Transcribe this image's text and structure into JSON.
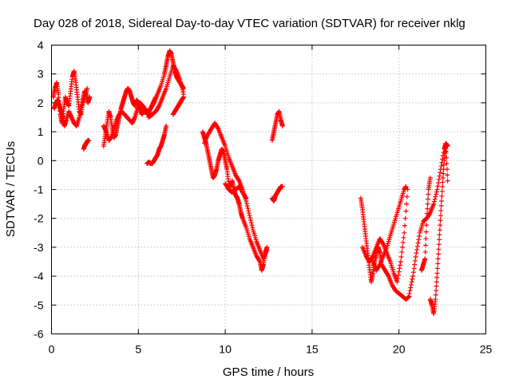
{
  "chart_data": {
    "type": "scatter",
    "title": "Day 028 of 2018, Sidereal Day-to-day VTEC variation (SDTVAR) for receiver nklg",
    "xlabel": "GPS time / hours",
    "ylabel": "SDTVAR / TECUs",
    "xlim": [
      0,
      25
    ],
    "ylim": [
      -6,
      4
    ],
    "xticks": [
      0,
      5,
      10,
      15,
      20,
      25
    ],
    "yticks": [
      -6,
      -5,
      -4,
      -3,
      -2,
      -1,
      0,
      1,
      2,
      3,
      4
    ],
    "grid": true,
    "marker": "+",
    "color": "#ff0000",
    "series": [
      {
        "name": "cluster-0-1.5h",
        "x": [
          0.1,
          0.2,
          0.3,
          0.4,
          0.5,
          0.6,
          0.7,
          0.8,
          0.9,
          1.0,
          1.1,
          1.2,
          1.3,
          1.4,
          1.5,
          1.6,
          1.7,
          1.8,
          1.9,
          2.0,
          2.1,
          2.2
        ],
        "y": [
          2.2,
          2.5,
          2.7,
          2.3,
          1.6,
          1.3,
          1.8,
          2.2,
          2.0,
          1.9,
          2.4,
          2.9,
          3.1,
          2.7,
          2.2,
          1.7,
          1.6,
          2.1,
          2.4,
          2.3,
          2.0,
          2.2
        ]
      },
      {
        "name": "cluster-0-1.5h-b",
        "x": [
          0.15,
          0.25,
          0.35,
          0.45,
          0.55,
          0.65,
          0.75,
          0.85,
          1.0,
          1.15,
          1.3,
          1.45,
          1.6,
          1.75,
          1.9,
          2.05
        ],
        "y": [
          1.8,
          2.0,
          2.1,
          1.9,
          1.7,
          1.5,
          1.2,
          1.4,
          1.7,
          1.5,
          1.3,
          1.2,
          1.5,
          1.9,
          2.2,
          2.5
        ]
      },
      {
        "name": "segment-1.9h",
        "x": [
          1.85,
          1.9,
          1.95,
          2.0,
          2.05,
          2.1,
          2.15
        ],
        "y": [
          0.4,
          0.5,
          0.55,
          0.6,
          0.65,
          0.7,
          0.7
        ]
      },
      {
        "name": "loop-3-5h",
        "x": [
          3.0,
          3.1,
          3.2,
          3.3,
          3.4,
          3.5,
          3.6,
          3.7,
          3.8,
          3.9,
          4.0,
          4.1,
          4.2,
          4.3,
          4.4,
          4.5,
          4.6,
          4.7,
          4.8,
          4.9,
          5.0,
          5.1,
          5.2,
          5.3,
          5.4,
          5.5
        ],
        "y": [
          0.5,
          0.9,
          1.3,
          1.7,
          1.5,
          1.1,
          0.8,
          0.9,
          1.2,
          1.5,
          1.8,
          2.0,
          2.2,
          2.4,
          2.5,
          2.4,
          2.2,
          2.0,
          1.9,
          2.1,
          2.0,
          1.8,
          1.6,
          1.7,
          1.8,
          1.7
        ]
      },
      {
        "name": "loop-3-5h-b",
        "x": [
          3.0,
          3.15,
          3.3,
          3.45,
          3.6,
          3.75,
          3.9,
          4.05,
          4.2,
          4.35,
          4.5,
          4.65,
          4.8,
          4.95,
          5.1,
          5.25,
          5.4,
          5.55,
          5.7,
          5.85,
          6.0
        ],
        "y": [
          1.2,
          1.0,
          0.7,
          0.8,
          1.1,
          1.4,
          1.6,
          1.7,
          1.6,
          1.5,
          1.4,
          1.3,
          1.5,
          1.8,
          2.0,
          1.9,
          1.7,
          1.6,
          1.8,
          2.0,
          2.2
        ]
      },
      {
        "name": "rise-5.5-7.6h",
        "x": [
          5.5,
          5.7,
          5.9,
          6.1,
          6.3,
          6.5,
          6.6,
          6.7,
          6.8,
          6.9,
          7.0,
          7.1,
          7.2,
          7.3,
          7.4,
          7.5,
          7.6
        ],
        "y": [
          1.6,
          1.8,
          2.0,
          2.3,
          2.6,
          3.0,
          3.3,
          3.6,
          3.8,
          3.7,
          3.4,
          3.1,
          2.9,
          2.8,
          2.7,
          2.6,
          2.5
        ]
      },
      {
        "name": "rise-5.5-7.6h-b",
        "x": [
          5.6,
          5.8,
          6.0,
          6.2,
          6.4,
          6.6,
          6.8,
          7.0,
          7.2,
          7.4,
          7.6
        ],
        "y": [
          1.5,
          1.6,
          1.7,
          1.9,
          2.2,
          2.5,
          2.9,
          3.3,
          3.1,
          2.8,
          2.3
        ]
      },
      {
        "name": "segment-5.5-6.6h",
        "x": [
          5.5,
          5.6,
          5.7,
          5.8,
          5.9,
          6.0,
          6.1,
          6.2,
          6.3,
          6.4,
          6.5,
          6.6
        ],
        "y": [
          -0.1,
          -0.05,
          -0.1,
          -0.1,
          0.0,
          0.1,
          0.2,
          0.4,
          0.5,
          0.7,
          0.9,
          1.2
        ]
      },
      {
        "name": "segment-7.0-7.6h",
        "x": [
          7.0,
          7.1,
          7.2,
          7.3,
          7.4,
          7.5,
          7.6
        ],
        "y": [
          1.6,
          1.7,
          1.8,
          1.9,
          2.0,
          2.1,
          2.2
        ]
      },
      {
        "name": "descent-8.7-12.4h",
        "x": [
          8.7,
          8.8,
          8.9,
          9.0,
          9.1,
          9.2,
          9.3,
          9.4,
          9.5,
          9.6,
          9.7,
          9.8,
          9.9,
          10.0,
          10.1,
          10.2,
          10.3,
          10.4,
          10.5,
          10.6,
          10.7,
          10.8,
          10.9,
          11.0,
          11.2,
          11.4,
          11.6,
          11.8,
          12.0,
          12.1,
          12.2,
          12.3,
          12.4
        ],
        "y": [
          1.0,
          0.8,
          0.6,
          0.3,
          0.0,
          -0.3,
          -0.6,
          -0.5,
          -0.3,
          0.0,
          0.2,
          0.4,
          0.3,
          0.0,
          -0.3,
          -0.8,
          -0.9,
          -0.7,
          -1.0,
          -1.2,
          -1.3,
          -1.5,
          -1.8,
          -2.0,
          -2.3,
          -2.7,
          -3.0,
          -3.3,
          -3.5,
          -3.8,
          -3.6,
          -3.2,
          -3.0
        ]
      },
      {
        "name": "descent-8.7-12.4h-b",
        "x": [
          8.8,
          9.0,
          9.2,
          9.4,
          9.6,
          9.8,
          10.0,
          10.2,
          10.4,
          10.6,
          10.8,
          11.0,
          11.2,
          11.4,
          11.6,
          11.8,
          12.0,
          12.2,
          12.4
        ],
        "y": [
          0.6,
          0.9,
          1.1,
          1.3,
          1.1,
          0.8,
          0.5,
          0.1,
          -0.2,
          -0.5,
          -0.7,
          -1.0,
          -1.4,
          -1.9,
          -2.4,
          -2.8,
          -3.1,
          -3.4,
          -3.1
        ]
      },
      {
        "name": "segment-10-11h",
        "x": [
          10.0,
          10.2,
          10.4,
          10.6,
          10.8,
          11.0,
          11.2
        ],
        "y": [
          -0.8,
          -1.0,
          -1.1,
          -1.0,
          -0.9,
          -1.1,
          -1.3
        ]
      },
      {
        "name": "segment-12.7-13.3h",
        "x": [
          12.7,
          12.8,
          12.9,
          13.0,
          13.1,
          13.2,
          13.3
        ],
        "y": [
          0.7,
          1.0,
          1.3,
          1.6,
          1.7,
          1.4,
          1.2
        ]
      },
      {
        "name": "segment-12.7-13.3h-b",
        "x": [
          12.7,
          12.8,
          12.9,
          13.0,
          13.1,
          13.2,
          13.3
        ],
        "y": [
          -1.3,
          -1.4,
          -1.2,
          -1.1,
          -1.0,
          -0.9,
          -0.9
        ]
      },
      {
        "name": "loop-17.8-20.6h",
        "x": [
          17.8,
          17.9,
          18.0,
          18.1,
          18.2,
          18.3,
          18.4,
          18.5,
          18.6,
          18.7,
          18.8,
          18.9,
          19.0,
          19.2,
          19.4,
          19.6,
          19.8,
          20.0,
          20.2,
          20.4,
          20.6
        ],
        "y": [
          -1.3,
          -1.7,
          -2.2,
          -2.7,
          -3.2,
          -3.7,
          -4.2,
          -3.9,
          -3.5,
          -3.2,
          -3.0,
          -3.2,
          -3.6,
          -3.8,
          -4.0,
          -4.3,
          -4.5,
          -4.6,
          -4.7,
          -4.8,
          -4.7
        ]
      },
      {
        "name": "loop-17.8-20.6h-b",
        "x": [
          17.9,
          18.1,
          18.3,
          18.5,
          18.7,
          18.9,
          19.1,
          19.3,
          19.5,
          19.7,
          19.9,
          20.1,
          20.3,
          20.5
        ],
        "y": [
          -3.0,
          -3.3,
          -3.5,
          -3.3,
          -3.0,
          -2.7,
          -2.9,
          -3.2,
          -3.5,
          -3.9,
          -4.2,
          -3.5,
          -2.5,
          -1.0
        ]
      },
      {
        "name": "rise-18.5-20.4h",
        "x": [
          18.5,
          18.7,
          18.9,
          19.1,
          19.3,
          19.5,
          19.7,
          19.9,
          20.1,
          20.3,
          20.4
        ],
        "y": [
          -3.5,
          -3.8,
          -3.6,
          -3.3,
          -3.0,
          -2.6,
          -2.2,
          -1.8,
          -1.4,
          -1.0,
          -0.9
        ]
      },
      {
        "name": "rise-20.6-22.8h",
        "x": [
          20.6,
          20.8,
          21.0,
          21.2,
          21.4,
          21.6,
          21.8,
          22.0,
          22.2,
          22.4,
          22.6,
          22.7,
          22.8
        ],
        "y": [
          -4.6,
          -4.0,
          -3.2,
          -2.5,
          -2.1,
          -2.0,
          -1.8,
          -1.5,
          -1.0,
          -0.3,
          0.4,
          0.6,
          0.5
        ]
      },
      {
        "name": "rise-21.8-22.8h",
        "x": [
          21.8,
          21.9,
          22.0,
          22.1,
          22.2,
          22.3,
          22.4,
          22.5,
          22.6,
          22.7,
          22.8
        ],
        "y": [
          -4.8,
          -5.0,
          -5.3,
          -4.8,
          -3.9,
          -2.9,
          -1.9,
          -0.9,
          0.0,
          0.5,
          -0.7
        ]
      },
      {
        "name": "segment-21.3-21.8h",
        "x": [
          21.3,
          21.4,
          21.5,
          21.6,
          21.7,
          21.8
        ],
        "y": [
          -3.8,
          -3.6,
          -3.4,
          -2.0,
          -1.0,
          -0.6
        ]
      }
    ]
  }
}
